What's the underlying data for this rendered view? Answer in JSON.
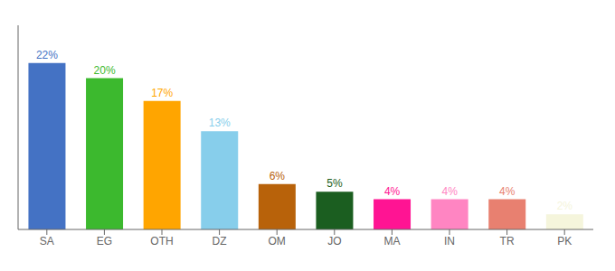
{
  "chart_data": {
    "type": "bar",
    "categories": [
      "SA",
      "EG",
      "OTH",
      "DZ",
      "OM",
      "JO",
      "MA",
      "IN",
      "TR",
      "PK"
    ],
    "values": [
      22,
      20,
      17,
      13,
      6,
      5,
      4,
      4,
      4,
      2
    ],
    "value_labels": [
      "22%",
      "20%",
      "17%",
      "13%",
      "6%",
      "5%",
      "4%",
      "4%",
      "4%",
      "2%"
    ],
    "colors": [
      "#4472C4",
      "#3CB92E",
      "#FFA500",
      "#87CEEB",
      "#B8620A",
      "#1B5E20",
      "#FF1493",
      "#FF85C2",
      "#E88070",
      "#F5F5DC"
    ],
    "ylim": [
      0,
      27
    ],
    "data_labels": true,
    "tick_labels": "x",
    "grid": false
  }
}
